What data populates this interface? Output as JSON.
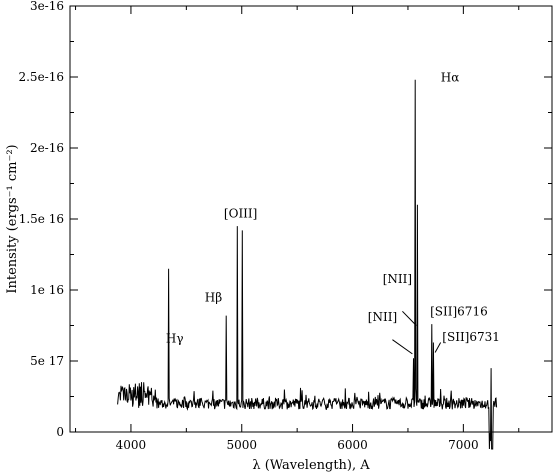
{
  "chart_data": {
    "type": "line",
    "title": "",
    "xlabel": "λ (Wavelength), A",
    "ylabel": "Intensity (ergs⁻¹ cm⁻²)",
    "xlim": [
      3450,
      7800
    ],
    "ylim": [
      0,
      3e-16
    ],
    "grid": false,
    "legend": "none",
    "xticks": [
      4000,
      5000,
      6000,
      7000
    ],
    "xtick_labels": [
      "4000",
      "5000",
      "6000",
      "7000"
    ],
    "yticks": [
      0,
      5e-17,
      1e-16,
      1.5e-16,
      2e-16,
      2.5e-16,
      3e-16
    ],
    "ytick_labels": [
      "0",
      "5e 17",
      "1e 16",
      "1.5e 16",
      "2e-16",
      "2.5e-16",
      "3e-16"
    ],
    "baseline_level": 2e-17,
    "continuum_range": [
      3880,
      7300
    ],
    "lines": [
      {
        "label": "Hγ",
        "wavelength": 4340,
        "peak": 1.15e-16
      },
      {
        "label": "Hβ",
        "wavelength": 4861,
        "peak": 8.2e-17
      },
      {
        "label": "[OIII]",
        "wavelength": 4959,
        "peak": 1.45e-16
      },
      {
        "label": "[OIII]",
        "wavelength": 5007,
        "peak": 1.42e-16
      },
      {
        "label": "[NII]",
        "wavelength": 6548,
        "peak": 5.2e-17
      },
      {
        "label": "Hα",
        "wavelength": 6563,
        "peak": 2.48e-16
      },
      {
        "label": "[NII]",
        "wavelength": 6584,
        "peak": 1.6e-16
      },
      {
        "label": "[SII]6716",
        "wavelength": 6716,
        "peak": 7.6e-17
      },
      {
        "label": "[SII]6731",
        "wavelength": 6731,
        "peak": 6.3e-17
      }
    ],
    "annotations": [
      "Hγ",
      "Hβ",
      "[OIII]",
      "[NII]",
      "[NII]",
      "Hα",
      "[SII]6716",
      "[SII]6731"
    ]
  }
}
